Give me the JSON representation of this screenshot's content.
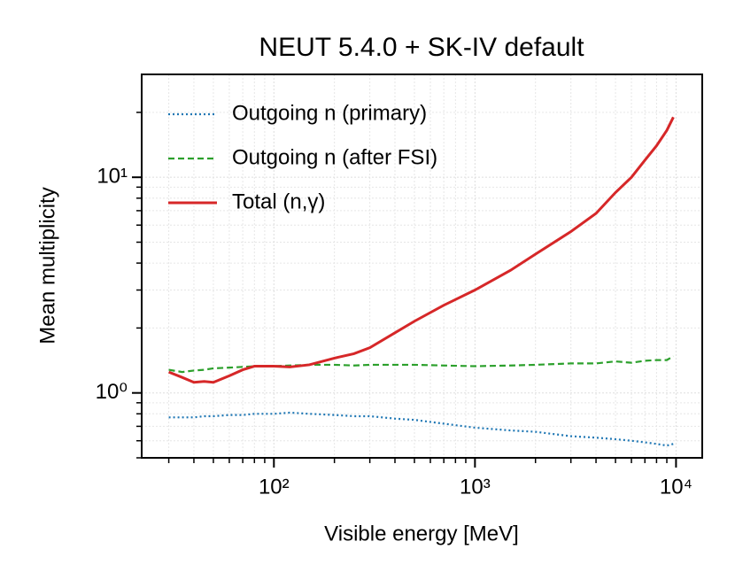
{
  "chart_data": {
    "type": "line",
    "title": "NEUT 5.4.0 + SK-IV default",
    "x_label": "Visible energy [MeV]",
    "y_label": "Mean multiplicity",
    "xscale": "log",
    "yscale": "log",
    "grid": true,
    "legend": "upper left",
    "xlim": [
      22,
      13500
    ],
    "ylim": [
      0.5,
      30
    ],
    "xticks": [
      {
        "value": 100,
        "label": "10²"
      },
      {
        "value": 1000,
        "label": "10³"
      },
      {
        "value": 10000,
        "label": "10⁴"
      }
    ],
    "yticks": [
      {
        "value": 1,
        "label": "10⁰"
      },
      {
        "value": 10,
        "label": "10¹"
      }
    ],
    "xminorticks": [
      30,
      40,
      50,
      60,
      70,
      80,
      90,
      200,
      300,
      400,
      500,
      600,
      700,
      800,
      900,
      2000,
      3000,
      4000,
      5000,
      6000,
      7000,
      8000,
      9000
    ],
    "yminorticks": [
      0.5,
      0.6,
      0.7,
      0.8,
      0.9,
      2,
      3,
      4,
      5,
      6,
      7,
      8,
      9,
      20
    ],
    "x": [
      30,
      35,
      40,
      45,
      50,
      60,
      70,
      80,
      100,
      120,
      150,
      200,
      250,
      300,
      400,
      500,
      700,
      1000,
      1500,
      2000,
      3000,
      4000,
      5000,
      6000,
      7000,
      8000,
      9000,
      9700
    ],
    "series": [
      {
        "name": "Outgoing n (primary)",
        "color": "#1f77b4",
        "linestyle": "dotted",
        "values": [
          0.77,
          0.77,
          0.77,
          0.78,
          0.78,
          0.79,
          0.79,
          0.8,
          0.8,
          0.81,
          0.8,
          0.79,
          0.78,
          0.78,
          0.76,
          0.75,
          0.72,
          0.69,
          0.67,
          0.66,
          0.63,
          0.62,
          0.61,
          0.6,
          0.59,
          0.58,
          0.57,
          0.58
        ]
      },
      {
        "name": "Outgoing n (after FSI)",
        "color": "#2ca02c",
        "linestyle": "dashed",
        "values": [
          1.28,
          1.25,
          1.27,
          1.28,
          1.3,
          1.31,
          1.32,
          1.33,
          1.33,
          1.34,
          1.35,
          1.35,
          1.34,
          1.35,
          1.35,
          1.35,
          1.34,
          1.33,
          1.34,
          1.35,
          1.37,
          1.37,
          1.4,
          1.38,
          1.41,
          1.42,
          1.42,
          1.48
        ]
      },
      {
        "name": "Total (n,γ)",
        "color": "#d62728",
        "linestyle": "solid",
        "values": [
          1.25,
          1.18,
          1.12,
          1.13,
          1.12,
          1.2,
          1.28,
          1.33,
          1.33,
          1.32,
          1.35,
          1.45,
          1.52,
          1.62,
          1.9,
          2.15,
          2.55,
          3.0,
          3.7,
          4.4,
          5.6,
          6.8,
          8.5,
          10,
          12,
          14,
          16.5,
          19
        ]
      }
    ]
  }
}
